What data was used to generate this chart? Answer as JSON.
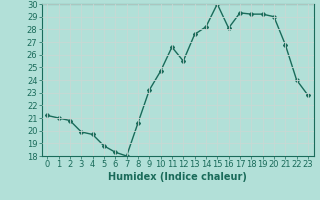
{
  "x": [
    0,
    1,
    2,
    3,
    4,
    5,
    6,
    7,
    8,
    9,
    10,
    11,
    12,
    13,
    14,
    15,
    16,
    17,
    18,
    19,
    20,
    21,
    22,
    23
  ],
  "y": [
    21.2,
    21.0,
    20.8,
    19.9,
    19.7,
    18.8,
    18.3,
    18.0,
    20.6,
    23.2,
    24.7,
    26.6,
    25.5,
    27.6,
    28.2,
    30.0,
    28.1,
    29.3,
    29.2,
    29.2,
    29.0,
    26.8,
    24.0,
    22.8
  ],
  "line_color": "#1a6b5a",
  "marker": "D",
  "marker_size": 2,
  "bg_color": "#b2e0d8",
  "grid_color": "#c8d8d4",
  "xlabel": "Humidex (Indice chaleur)",
  "ylim": [
    18,
    30
  ],
  "xlim": [
    -0.5,
    23.5
  ],
  "yticks": [
    18,
    19,
    20,
    21,
    22,
    23,
    24,
    25,
    26,
    27,
    28,
    29,
    30
  ],
  "xticks": [
    0,
    1,
    2,
    3,
    4,
    5,
    6,
    7,
    8,
    9,
    10,
    11,
    12,
    13,
    14,
    15,
    16,
    17,
    18,
    19,
    20,
    21,
    22,
    23
  ],
  "tick_color": "#1a6b5a",
  "xlabel_color": "#1a6b5a",
  "xlabel_fontsize": 7,
  "tick_fontsize": 6,
  "linewidth": 1.0
}
